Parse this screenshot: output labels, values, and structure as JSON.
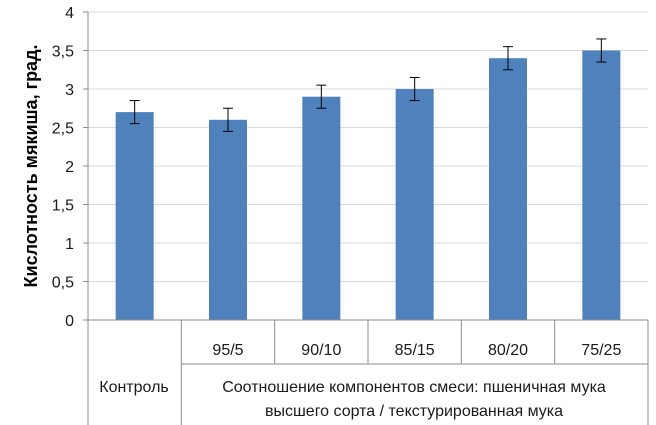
{
  "chart_data": {
    "type": "bar",
    "categories": [
      "",
      "95/5",
      "90/10",
      "85/15",
      "80/20",
      "75/25"
    ],
    "values": [
      2.7,
      2.6,
      2.9,
      3.0,
      3.4,
      3.5
    ],
    "error": [
      0.15,
      0.15,
      0.15,
      0.15,
      0.15,
      0.15
    ],
    "ylabel": "Кислотность мякиша, град.",
    "ylim": [
      0,
      4
    ],
    "yticks": [
      "0",
      "0,5",
      "1",
      "1,5",
      "2",
      "2,5",
      "3",
      "3,5",
      "4"
    ],
    "group_labels": {
      "control": "Контроль",
      "mix_line1": "Соотношение компонентов смеси: пшеничная мука",
      "mix_line2": "высшего сорта / текстурированная мука"
    },
    "bar_color": "#4f81bd",
    "grid": true,
    "legend": "none"
  }
}
